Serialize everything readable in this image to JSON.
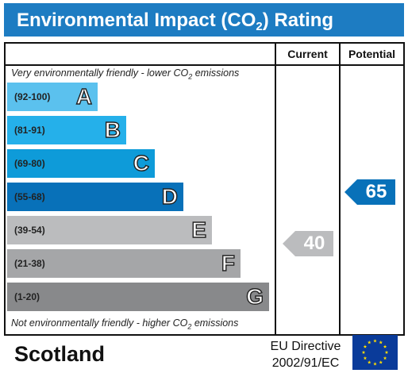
{
  "title": {
    "main": "Environmental Impact (CO",
    "sub": "2",
    "end": ") Rating"
  },
  "columns": {
    "current": "Current",
    "potential": "Potential"
  },
  "top_note": {
    "main": "Very environmentally friendly - lower CO",
    "sub": "2",
    "end": " emissions"
  },
  "bottom_note": {
    "main": "Not environmentally friendly - higher CO",
    "sub": "2",
    "end": " emissions"
  },
  "bands": [
    {
      "range": "(92-100)",
      "letter": "A",
      "color": "#5bc1ee"
    },
    {
      "range": "(81-91)",
      "letter": "B",
      "color": "#25b0ea"
    },
    {
      "range": "(69-80)",
      "letter": "C",
      "color": "#0e9bd9"
    },
    {
      "range": "(55-68)",
      "letter": "D",
      "color": "#0871b9"
    },
    {
      "range": "(39-54)",
      "letter": "E",
      "color": "#bbbcbe"
    },
    {
      "range": "(21-38)",
      "letter": "F",
      "color": "#a5a6a8"
    },
    {
      "range": "(1-20)",
      "letter": "G",
      "color": "#88898b"
    }
  ],
  "current": {
    "value": "40",
    "band": "E",
    "color": "#bbbcbe"
  },
  "potential": {
    "value": "65",
    "band": "D",
    "color": "#0871b9"
  },
  "footer": {
    "country": "Scotland",
    "directive_line1": "EU Directive",
    "directive_line2": "2002/91/EC"
  },
  "colors": {
    "title_bar": "#1d7cc2",
    "eu_flag_blue": "#0a3b9a",
    "eu_flag_stars": "#ffdd00"
  },
  "icons": {
    "eu_flag": "eu-flag-icon"
  }
}
